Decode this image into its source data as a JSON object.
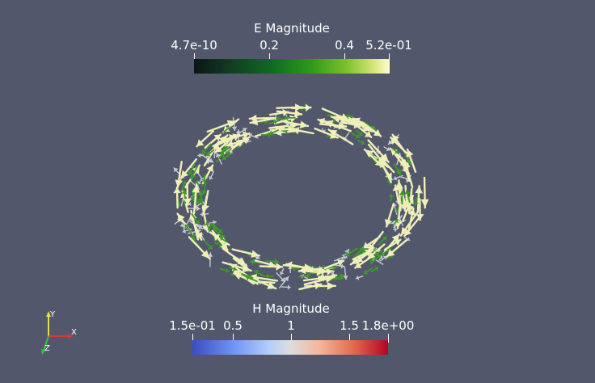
{
  "e_legend": {
    "title": "E Magnitude",
    "ticks": [
      {
        "label": "4.7e-10",
        "value": 4.7e-10
      },
      {
        "label": "0.2",
        "value": 0.2
      },
      {
        "label": "0.4",
        "value": 0.4
      },
      {
        "label": "5.2e-01",
        "value": 0.52
      }
    ],
    "range": [
      4.7e-10,
      0.52
    ],
    "colormap": "Greens (dark to light yellow)"
  },
  "h_legend": {
    "title": "H Magnitude",
    "ticks": [
      {
        "label": "1.5e-01",
        "value": 0.15
      },
      {
        "label": "0.5",
        "value": 0.5
      },
      {
        "label": "1",
        "value": 1.0
      },
      {
        "label": "1.5",
        "value": 1.5
      },
      {
        "label": "1.8e+00",
        "value": 1.8
      }
    ],
    "range": [
      0.15,
      1.8
    ],
    "colormap": "Cool to Warm"
  },
  "axes": {
    "x": "X",
    "y": "Y",
    "z": "Z"
  },
  "colors": {
    "background": "#52576b",
    "e_arrow_high": "#efefb8",
    "e_arrow_mid": "#3e9b2a",
    "h_arrow": "#c8cbd6"
  }
}
